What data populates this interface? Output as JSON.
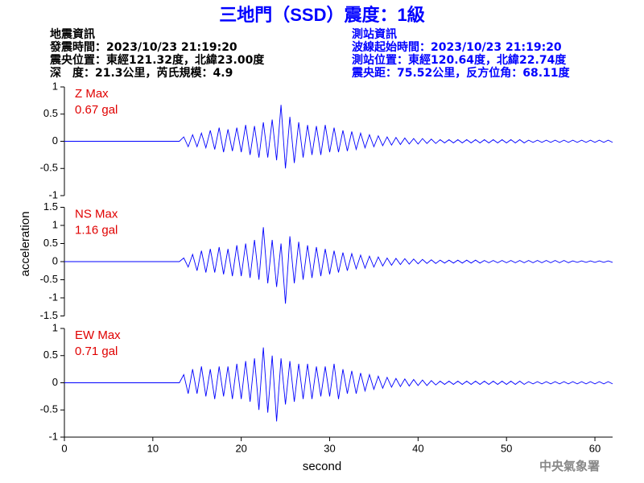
{
  "title": "三地門（SSD）震度：1級",
  "info_left": [
    "地震資訊",
    "發震時間：2023/10/23 21:19:20",
    "震央位置：東經121.32度，北緯23.00度",
    "深　度：21.3公里，芮氏規模：4.9"
  ],
  "info_right": [
    "測站資訊",
    "波線起始時間：2023/10/23 21:19:20",
    "測站位置：東經120.64度，北緯22.74度",
    "震央距：75.52公里，反方位角：68.11度"
  ],
  "y_label": "acceleration",
  "x_label": "second",
  "footer": "中央氣象署",
  "chart_data": [
    {
      "type": "line",
      "name": "Z Max",
      "max_label": "0.67 gal",
      "color": "#0000ff",
      "xlim": [
        0,
        62
      ],
      "ylim": [
        -1,
        1
      ],
      "yticks": [
        -1,
        -0.5,
        0,
        0.5,
        1
      ],
      "x": [
        0,
        13,
        13.5,
        14,
        14.5,
        15,
        15.5,
        16,
        16.5,
        17,
        17.5,
        18,
        18.5,
        19,
        19.5,
        20,
        20.5,
        21,
        21.5,
        22,
        22.5,
        23,
        23.5,
        24,
        24.5,
        25,
        25.5,
        26,
        26.5,
        27,
        27.5,
        28,
        28.5,
        29,
        29.5,
        30,
        30.5,
        31,
        31.5,
        32,
        32.5,
        33,
        33.5,
        34,
        34.5,
        35,
        35.5,
        36,
        36.5,
        37,
        37.5,
        38,
        38.5,
        39,
        39.5,
        40,
        40.5,
        41,
        41.5,
        42,
        42.5,
        43,
        43.5,
        44,
        44.5,
        45,
        45.5,
        46,
        46.5,
        47,
        47.5,
        48,
        48.5,
        49,
        49.5,
        50,
        50.5,
        51,
        51.5,
        52,
        52.5,
        53,
        53.5,
        54,
        54.5,
        55,
        55.5,
        56,
        56.5,
        57,
        57.5,
        58,
        58.5,
        59,
        59.5,
        60,
        60.5,
        61,
        61.5,
        62
      ],
      "values": [
        0,
        0,
        0.08,
        -0.1,
        0.12,
        -0.1,
        0.15,
        -0.12,
        0.2,
        -0.15,
        0.25,
        -0.2,
        0.22,
        -0.18,
        0.25,
        -0.2,
        0.3,
        -0.25,
        0.28,
        -0.3,
        0.35,
        -0.3,
        0.4,
        -0.35,
        0.67,
        -0.5,
        0.45,
        -0.4,
        0.35,
        -0.3,
        0.3,
        -0.25,
        0.28,
        -0.25,
        0.3,
        -0.2,
        0.25,
        -0.2,
        0.2,
        -0.18,
        0.18,
        -0.15,
        0.15,
        -0.12,
        0.12,
        -0.1,
        0.1,
        -0.08,
        0.08,
        -0.07,
        0.07,
        -0.06,
        0.06,
        -0.05,
        0.05,
        -0.05,
        0.05,
        -0.04,
        0.04,
        -0.04,
        0.03,
        -0.03,
        0.03,
        -0.03,
        0.03,
        -0.03,
        0.03,
        -0.03,
        0.03,
        -0.03,
        0.03,
        -0.03,
        0.03,
        -0.03,
        0.03,
        -0.03,
        0.03,
        -0.03,
        0.03,
        -0.03,
        0.02,
        -0.02,
        0.02,
        -0.02,
        0.02,
        -0.02,
        0.02,
        -0.02,
        0.02,
        -0.02,
        0.02,
        -0.02,
        0.02,
        -0.02,
        0.02,
        -0.02,
        0.02,
        -0.02,
        0.02,
        -0.02
      ]
    },
    {
      "type": "line",
      "name": "NS Max",
      "max_label": "1.16 gal",
      "color": "#0000ff",
      "xlim": [
        0,
        62
      ],
      "ylim": [
        -1.5,
        1.5
      ],
      "yticks": [
        -1.5,
        -1,
        -0.5,
        0,
        0.5,
        1,
        1.5
      ],
      "x": [
        0,
        13,
        13.5,
        14,
        14.5,
        15,
        15.5,
        16,
        16.5,
        17,
        17.5,
        18,
        18.5,
        19,
        19.5,
        20,
        20.5,
        21,
        21.5,
        22,
        22.5,
        23,
        23.5,
        24,
        24.5,
        25,
        25.5,
        26,
        26.5,
        27,
        27.5,
        28,
        28.5,
        29,
        29.5,
        30,
        30.5,
        31,
        31.5,
        32,
        32.5,
        33,
        33.5,
        34,
        34.5,
        35,
        35.5,
        36,
        36.5,
        37,
        37.5,
        38,
        38.5,
        39,
        39.5,
        40,
        40.5,
        41,
        41.5,
        42,
        42.5,
        43,
        43.5,
        44,
        44.5,
        45,
        45.5,
        46,
        46.5,
        47,
        47.5,
        48,
        48.5,
        49,
        49.5,
        50,
        50.5,
        51,
        51.5,
        52,
        52.5,
        53,
        53.5,
        54,
        54.5,
        55,
        55.5,
        56,
        56.5,
        57,
        57.5,
        58,
        58.5,
        59,
        59.5,
        60,
        60.5,
        61,
        61.5,
        62
      ],
      "values": [
        0,
        0,
        0.1,
        -0.15,
        0.2,
        -0.25,
        0.3,
        -0.3,
        0.35,
        -0.3,
        0.4,
        -0.35,
        0.35,
        -0.4,
        0.45,
        -0.4,
        0.5,
        -0.45,
        0.6,
        -0.5,
        0.95,
        -0.6,
        0.6,
        -0.7,
        0.5,
        -1.16,
        0.7,
        -0.6,
        0.55,
        -0.5,
        0.45,
        -0.45,
        0.4,
        -0.4,
        0.35,
        -0.35,
        0.3,
        -0.3,
        0.25,
        -0.25,
        0.22,
        -0.2,
        0.18,
        -0.18,
        0.15,
        -0.15,
        0.13,
        -0.12,
        0.1,
        -0.1,
        0.09,
        -0.08,
        0.08,
        -0.07,
        0.07,
        -0.06,
        0.06,
        -0.05,
        0.05,
        -0.05,
        0.04,
        -0.04,
        0.04,
        -0.04,
        0.04,
        -0.04,
        0.04,
        -0.04,
        0.04,
        -0.04,
        0.03,
        -0.03,
        0.03,
        -0.03,
        0.03,
        -0.03,
        0.03,
        -0.03,
        0.03,
        -0.03,
        0.03,
        -0.03,
        0.03,
        -0.03,
        0.03,
        -0.03,
        0.03,
        -0.03,
        0.03,
        -0.03,
        0.02,
        -0.02,
        0.02,
        -0.02,
        0.02,
        -0.02,
        0.02,
        -0.02,
        0.02,
        -0.02
      ]
    },
    {
      "type": "line",
      "name": "EW Max",
      "max_label": "0.71 gal",
      "color": "#0000ff",
      "xlim": [
        0,
        62
      ],
      "ylim": [
        -1,
        1
      ],
      "yticks": [
        -1,
        -0.5,
        0,
        0.5,
        1
      ],
      "xticks": [
        0,
        10,
        20,
        30,
        40,
        50,
        60
      ],
      "x": [
        0,
        13,
        13.5,
        14,
        14.5,
        15,
        15.5,
        16,
        16.5,
        17,
        17.5,
        18,
        18.5,
        19,
        19.5,
        20,
        20.5,
        21,
        21.5,
        22,
        22.5,
        23,
        23.5,
        24,
        24.5,
        25,
        25.5,
        26,
        26.5,
        27,
        27.5,
        28,
        28.5,
        29,
        29.5,
        30,
        30.5,
        31,
        31.5,
        32,
        32.5,
        33,
        33.5,
        34,
        34.5,
        35,
        35.5,
        36,
        36.5,
        37,
        37.5,
        38,
        38.5,
        39,
        39.5,
        40,
        40.5,
        41,
        41.5,
        42,
        42.5,
        43,
        43.5,
        44,
        44.5,
        45,
        45.5,
        46,
        46.5,
        47,
        47.5,
        48,
        48.5,
        49,
        49.5,
        50,
        50.5,
        51,
        51.5,
        52,
        52.5,
        53,
        53.5,
        54,
        54.5,
        55,
        55.5,
        56,
        56.5,
        57,
        57.5,
        58,
        58.5,
        59,
        59.5,
        60,
        60.5,
        61,
        61.5,
        62
      ],
      "values": [
        0,
        0,
        0.15,
        -0.2,
        0.25,
        -0.2,
        0.3,
        -0.25,
        0.25,
        -0.3,
        0.3,
        -0.25,
        0.3,
        -0.3,
        0.35,
        -0.3,
        0.4,
        -0.35,
        0.45,
        -0.5,
        0.65,
        -0.55,
        0.5,
        -0.71,
        0.45,
        -0.4,
        0.4,
        -0.35,
        0.35,
        -0.3,
        0.35,
        -0.3,
        0.3,
        -0.25,
        0.3,
        -0.25,
        0.35,
        -0.3,
        0.25,
        -0.2,
        0.22,
        -0.2,
        0.18,
        -0.15,
        0.15,
        -0.12,
        0.12,
        -0.1,
        0.1,
        -0.08,
        0.08,
        -0.07,
        0.07,
        -0.06,
        0.06,
        -0.05,
        0.05,
        -0.05,
        0.04,
        -0.04,
        0.03,
        -0.03,
        0.03,
        -0.03,
        0.03,
        -0.03,
        0.03,
        -0.03,
        0.03,
        -0.03,
        0.03,
        -0.03,
        0.03,
        -0.03,
        0.03,
        -0.03,
        0.03,
        -0.03,
        0.03,
        -0.03,
        0.02,
        -0.02,
        0.02,
        -0.02,
        0.02,
        -0.02,
        0.02,
        -0.02,
        0.02,
        -0.02,
        0.02,
        -0.02,
        0.02,
        -0.02,
        0.02,
        -0.02,
        0.02,
        -0.02,
        0.02,
        -0.02
      ]
    }
  ]
}
